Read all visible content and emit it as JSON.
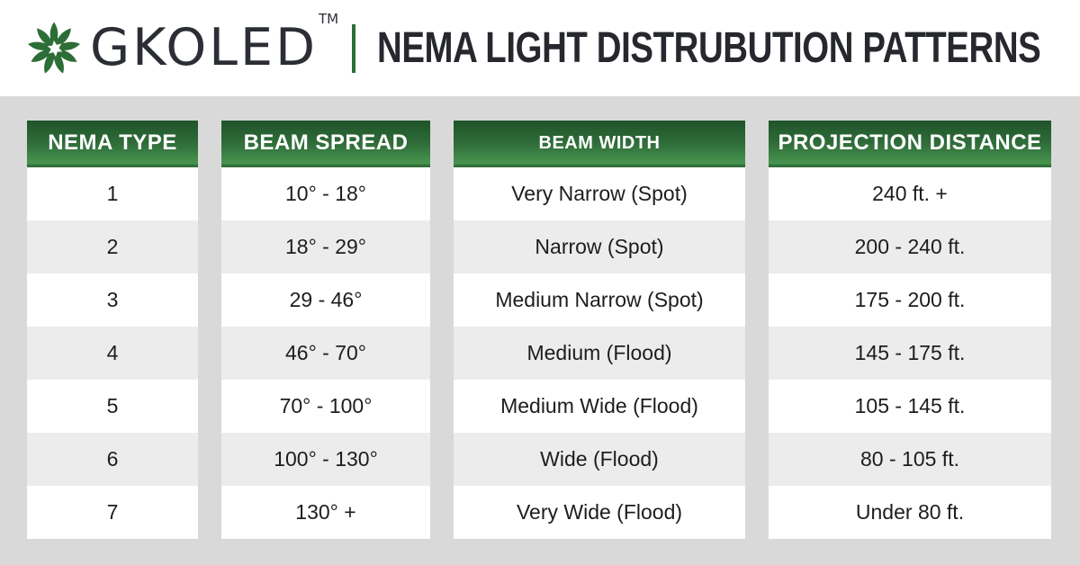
{
  "brand": {
    "wordmark": "GKOLED",
    "trademark": "TM",
    "flower_icon": "flower-starburst-icon",
    "green": "#2d6e37"
  },
  "header": {
    "title": "NEMA LIGHT DISTRUBUTION PATTERNS"
  },
  "chart_data": {
    "type": "table",
    "title": "NEMA LIGHT DISTRUBUTION PATTERNS",
    "columns": [
      "NEMA TYPE",
      "BEAM SPREAD",
      "BEAM WIDTH",
      "PROJECTION DISTANCE"
    ],
    "rows": [
      [
        "1",
        "10° - 18°",
        "Very Narrow (Spot)",
        "240 ft. +"
      ],
      [
        "2",
        "18° - 29°",
        "Narrow (Spot)",
        "200 - 240 ft."
      ],
      [
        "3",
        "29 - 46°",
        "Medium Narrow (Spot)",
        "175 - 200 ft."
      ],
      [
        "4",
        "46° - 70°",
        "Medium (Flood)",
        "145 - 175 ft."
      ],
      [
        "5",
        "70° - 100°",
        "Medium Wide (Flood)",
        "105 - 145 ft."
      ],
      [
        "6",
        "100° - 130°",
        "Wide (Flood)",
        "80 - 105 ft."
      ],
      [
        "7",
        "130° +",
        "Very Wide (Flood)",
        "Under 80 ft."
      ]
    ]
  },
  "colors": {
    "page_background": "#d9d9d9",
    "band_background": "#ffffff",
    "header_gradient_top": "#1f5329",
    "header_gradient_bottom": "#47944f",
    "row_alt": "#ececec",
    "text": "#1d1d1f",
    "title_text": "#26282e"
  }
}
